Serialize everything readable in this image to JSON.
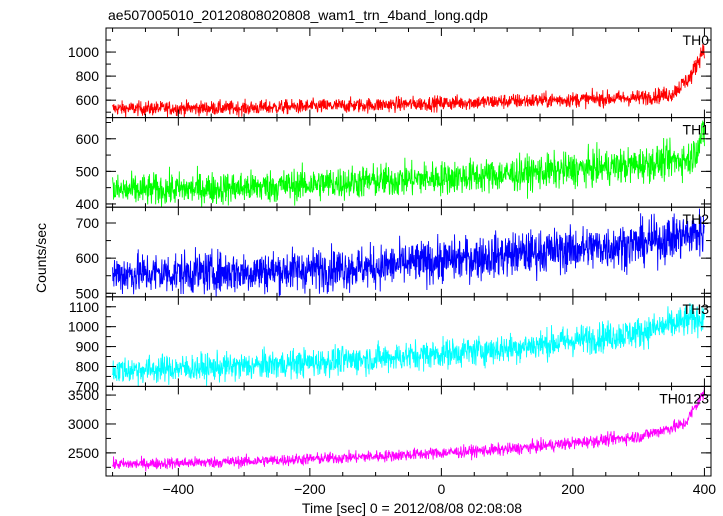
{
  "chart_data": {
    "type": "line",
    "title": "ae507005010_20120808020808_wam1_trn_4band_long.qdp",
    "xlabel": "Time [sec] 0 = 2012/08/08 02:08:08",
    "ylabel": "Counts/sec",
    "xlim": [
      -510,
      410
    ],
    "x_ticks": [
      -400,
      -200,
      0,
      200,
      400
    ],
    "x_tick_labels": [
      "−400",
      "−200",
      "0",
      "200",
      "400"
    ],
    "panels": [
      {
        "name": "TH0",
        "color": "#ff0000",
        "ylim": [
          455,
          1200
        ],
        "y_ticks": [
          600,
          800,
          1000
        ],
        "y_tick_labels": [
          "600",
          "800",
          "1000"
        ],
        "trend": [
          [
            -500,
            530
          ],
          [
            -300,
            535
          ],
          [
            -100,
            560
          ],
          [
            100,
            590
          ],
          [
            300,
            620
          ],
          [
            350,
            650
          ],
          [
            380,
            800
          ],
          [
            400,
            1050
          ]
        ],
        "noise": 30
      },
      {
        "name": "TH1",
        "color": "#00ff00",
        "ylim": [
          390,
          665
        ],
        "y_ticks": [
          400,
          500,
          600
        ],
        "y_tick_labels": [
          "400",
          "500",
          "600"
        ],
        "trend": [
          [
            -500,
            440
          ],
          [
            -300,
            450
          ],
          [
            -100,
            470
          ],
          [
            100,
            490
          ],
          [
            300,
            520
          ],
          [
            380,
            540
          ],
          [
            400,
            620
          ]
        ],
        "noise": 25
      },
      {
        "name": "TH2",
        "color": "#0000ff",
        "ylim": [
          490,
          745
        ],
        "y_ticks": [
          500,
          600,
          700
        ],
        "y_tick_labels": [
          "500",
          "600",
          "700"
        ],
        "trend": [
          [
            -500,
            555
          ],
          [
            -300,
            560
          ],
          [
            -100,
            575
          ],
          [
            100,
            610
          ],
          [
            300,
            640
          ],
          [
            400,
            675
          ]
        ],
        "noise": 30
      },
      {
        "name": "TH3",
        "color": "#00ffff",
        "ylim": [
          700,
          1150
        ],
        "y_ticks": [
          700,
          800,
          900,
          1000,
          1100
        ],
        "y_tick_labels": [
          "700",
          "800",
          "900",
          "1000",
          "1100"
        ],
        "trend": [
          [
            -500,
            780
          ],
          [
            -300,
            800
          ],
          [
            -100,
            840
          ],
          [
            100,
            890
          ],
          [
            300,
            970
          ],
          [
            400,
            1050
          ]
        ],
        "noise": 35
      },
      {
        "name": "TH0123",
        "color": "#ff00ff",
        "ylim": [
          2100,
          3650
        ],
        "y_ticks": [
          2500,
          3000,
          3500
        ],
        "y_tick_labels": [
          "2500",
          "3000",
          "3500"
        ],
        "trend": [
          [
            -500,
            2300
          ],
          [
            -300,
            2350
          ],
          [
            -100,
            2440
          ],
          [
            100,
            2560
          ],
          [
            300,
            2780
          ],
          [
            370,
            3000
          ],
          [
            400,
            3550
          ]
        ],
        "noise": 50
      }
    ]
  }
}
